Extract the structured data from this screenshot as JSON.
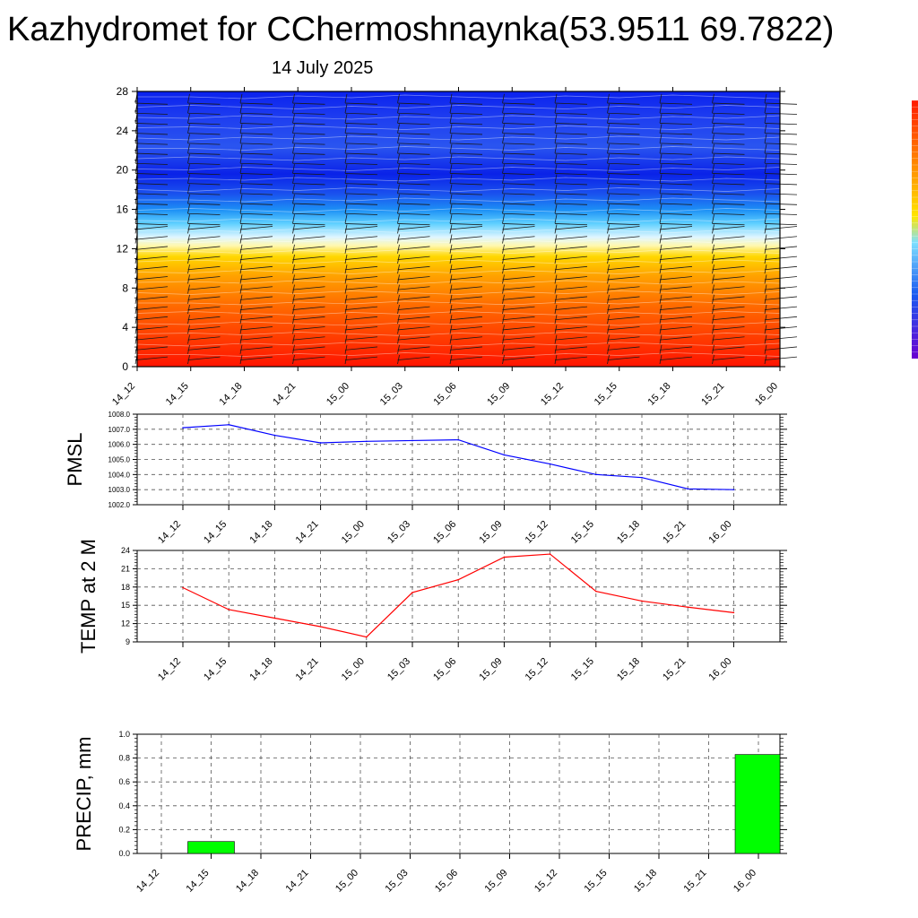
{
  "header": {
    "title": "Kazhydromet for CChermoshnaynka(53.9511 69.7822)",
    "date": "14 July 2025"
  },
  "time_labels": [
    "14_12",
    "14_15",
    "14_18",
    "14_21",
    "15_00",
    "15_03",
    "15_06",
    "15_09",
    "15_12",
    "15_15",
    "15_18",
    "15_21",
    "16_00"
  ],
  "colors": {
    "pmsl_line": "#0000ff",
    "temp_line": "#ff0000",
    "precip_bar": "#00ff00",
    "cross_section_low": "#ff1a00",
    "cross_section_mid": "#fff5a0",
    "cross_section_high": "#0a1ef0"
  },
  "chart_data": [
    {
      "type": "heatmap",
      "title": "",
      "xlabel": "",
      "ylabel": "",
      "categories": [
        "14_12",
        "14_15",
        "14_18",
        "14_21",
        "15_00",
        "15_03",
        "15_06",
        "15_09",
        "15_12",
        "15_15",
        "15_18",
        "15_21",
        "16_00"
      ],
      "yticks": [
        0,
        4,
        8,
        12,
        16,
        20,
        24,
        28
      ],
      "ylim": [
        0,
        28
      ],
      "description_values": "temperature-like field: warm (red) near 0, yellow near 12, cyan near 15, deep blue above 18; overlaid wind barbs"
    },
    {
      "type": "line",
      "title": "",
      "ylabel": "PMSL",
      "categories": [
        "14_12",
        "14_15",
        "14_18",
        "14_21",
        "15_00",
        "15_03",
        "15_06",
        "15_09",
        "15_12",
        "15_15",
        "15_18",
        "15_21",
        "16_00"
      ],
      "series": [
        {
          "values": [
            1007.1,
            1007.3,
            1006.6,
            1006.1,
            1006.2,
            1006.25,
            1006.3,
            1005.3,
            1004.7,
            1004.0,
            1003.8,
            1003.05,
            1003.0
          ]
        }
      ],
      "yticks": [
        "1002.0",
        "1003.0",
        "1004.0",
        "1005.0",
        "1006.0",
        "1007.0",
        "1008.0"
      ],
      "ylim": [
        1002,
        1008
      ],
      "grid": true
    },
    {
      "type": "line",
      "title": "",
      "ylabel": "TEMP at 2 M",
      "categories": [
        "14_12",
        "14_15",
        "14_18",
        "14_21",
        "15_00",
        "15_03",
        "15_06",
        "15_09",
        "15_12",
        "15_15",
        "15_18",
        "15_21",
        "16_00"
      ],
      "series": [
        {
          "values": [
            17.9,
            14.3,
            12.9,
            11.5,
            9.8,
            17.1,
            19.2,
            22.9,
            23.4,
            17.3,
            15.7,
            14.7,
            13.8
          ]
        }
      ],
      "yticks": [
        "9",
        "12",
        "15",
        "18",
        "21",
        "24"
      ],
      "ylim": [
        9,
        24
      ],
      "grid": true
    },
    {
      "type": "bar",
      "title": "",
      "ylabel": "PRECIP, mm",
      "categories": [
        "14_12",
        "14_15",
        "14_18",
        "14_21",
        "15_00",
        "15_03",
        "15_06",
        "15_09",
        "15_12",
        "15_15",
        "15_18",
        "15_21",
        "16_00"
      ],
      "values": [
        0,
        0.1,
        0,
        0,
        0,
        0,
        0,
        0,
        0,
        0,
        0,
        0,
        0.83
      ],
      "yticks": [
        "0.0",
        "0.2",
        "0.4",
        "0.6",
        "0.8",
        "1.0"
      ],
      "ylim": [
        0,
        1.0
      ],
      "grid": true
    }
  ]
}
